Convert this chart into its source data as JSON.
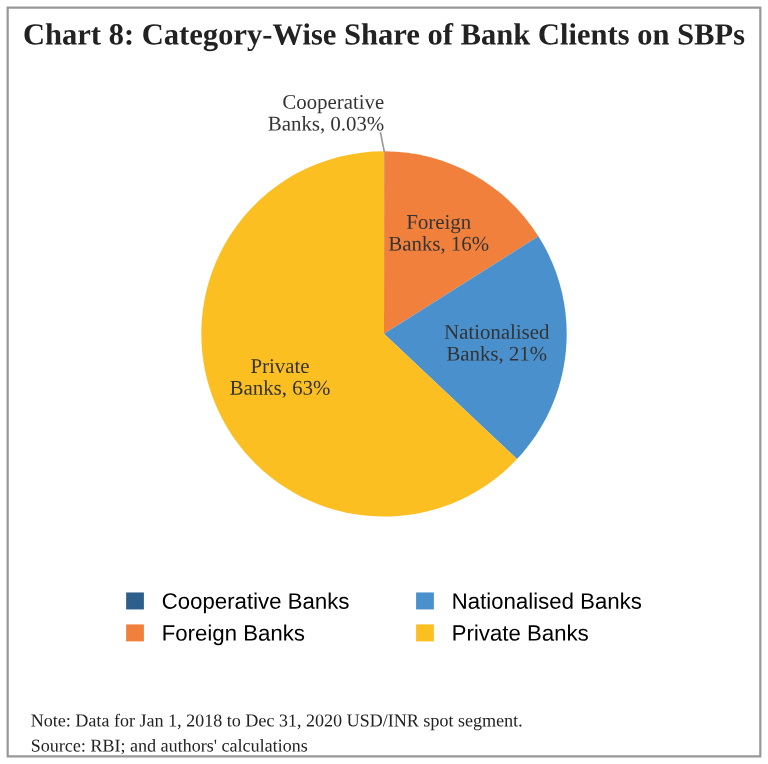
{
  "chart_data": {
    "type": "pie",
    "title": "Chart 8: Category-Wise Share of Bank Clients on SBPs",
    "categories": [
      "Cooperative Banks",
      "Foreign Banks",
      "Nationalised Banks",
      "Private Banks"
    ],
    "values": [
      0.03,
      16,
      21,
      63
    ],
    "colors": [
      "#2e5f8c",
      "#f0803c",
      "#4a90cc",
      "#fbbf22"
    ],
    "value_labels": [
      "Cooperative Banks, 0.03%",
      "Foreign Banks, 16%",
      "Nationalised Banks, 21%",
      "Private Banks, 63%"
    ],
    "legend": "bottom",
    "annotations": [
      "Note: Data for Jan 1, 2018 to Dec 31, 2020 USD/INR spot segment.",
      "Source: RBI; and authors' calculations"
    ]
  }
}
